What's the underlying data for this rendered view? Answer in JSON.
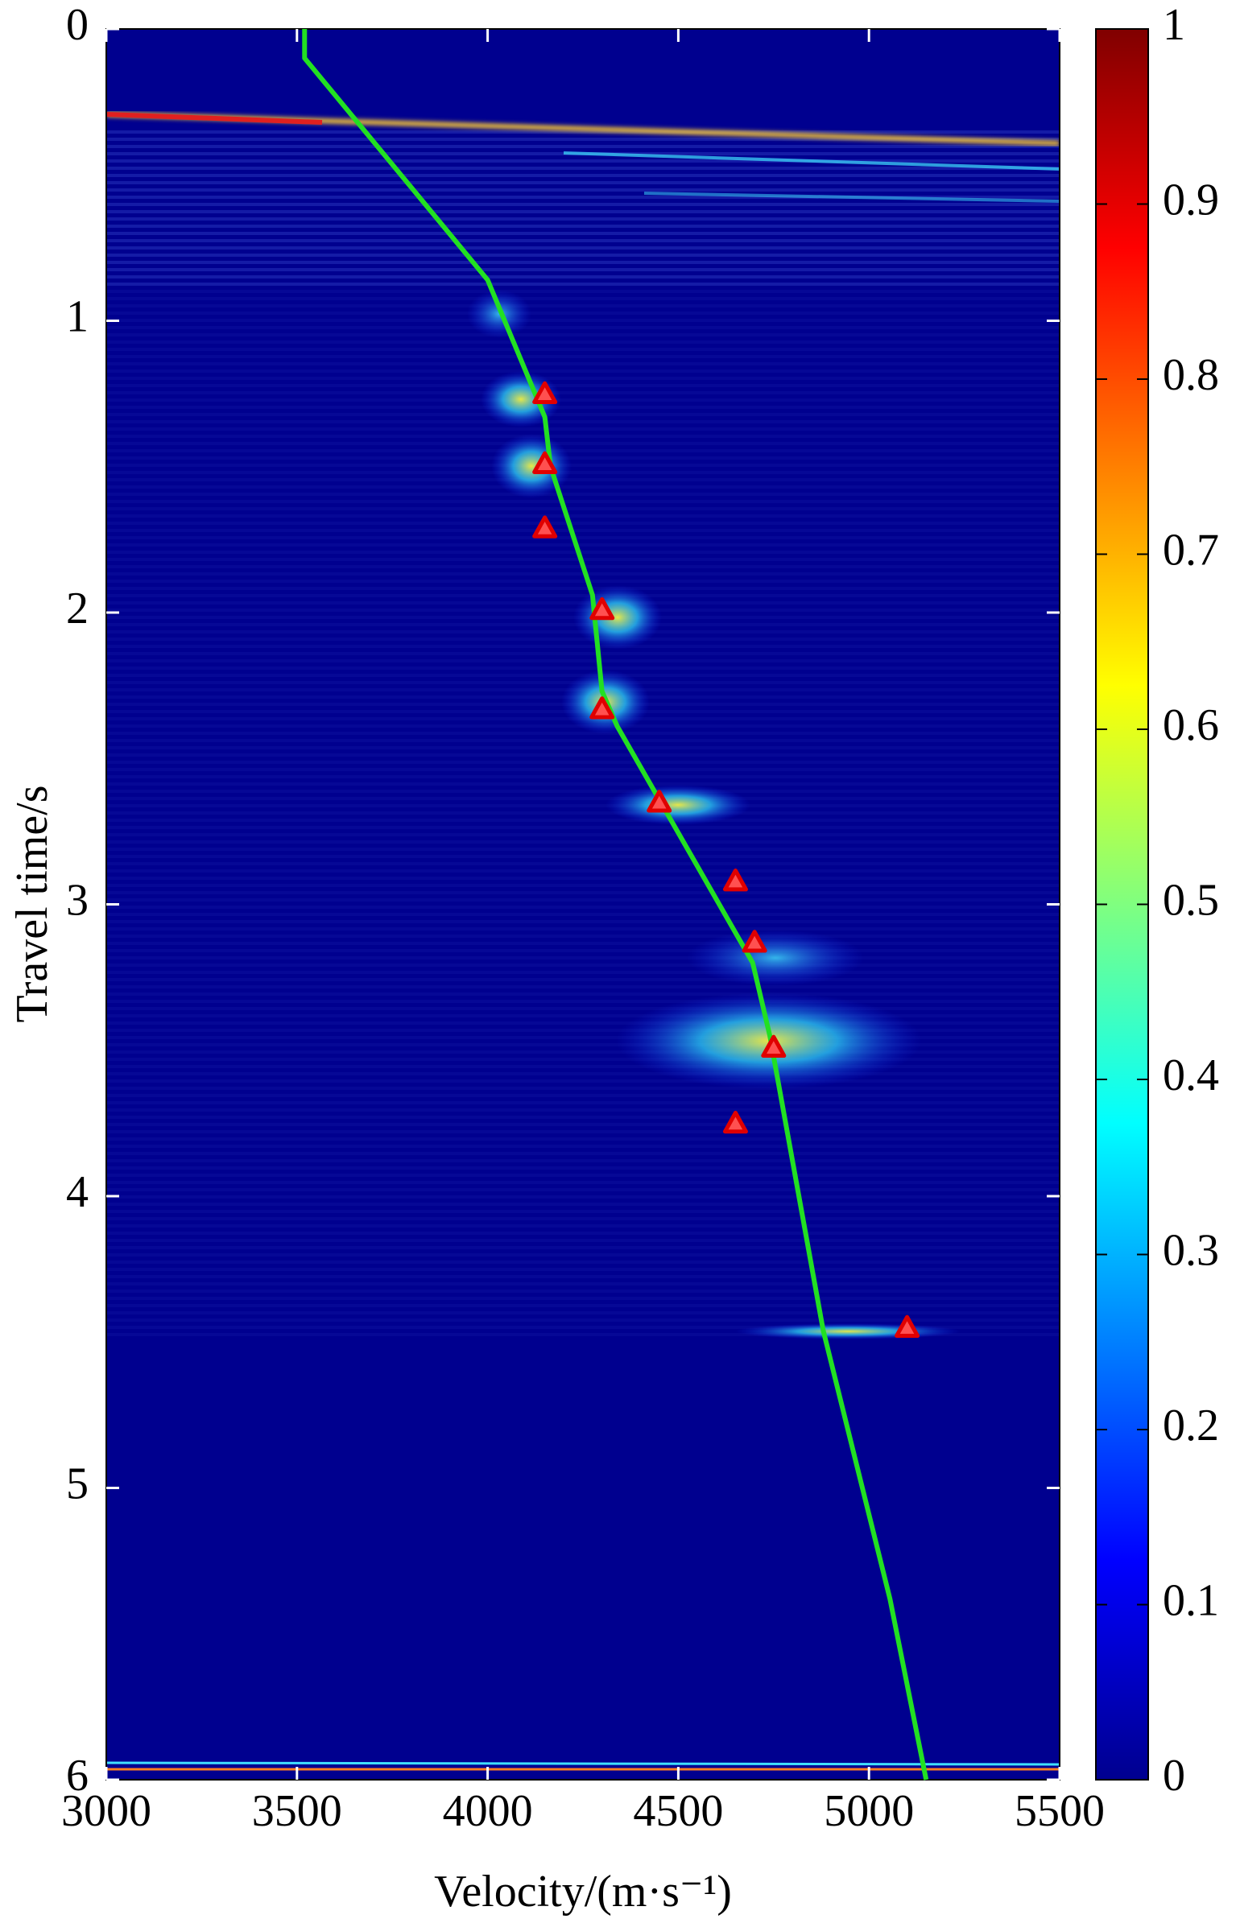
{
  "chart_data": {
    "type": "line",
    "x_label": "Velocity/(m·s⁻¹)",
    "y_label": "Travel time/s",
    "xlim": [
      3000,
      5500
    ],
    "xticks": [
      3000,
      3500,
      4000,
      4500,
      5000,
      5500
    ],
    "ylim": [
      0,
      6
    ],
    "yticks": [
      0,
      1,
      2,
      3,
      4,
      5,
      6
    ],
    "y_reversed": true,
    "background": "#00008f",
    "series": [
      {
        "type": "line",
        "color": "#22e022",
        "x": [
          3520,
          3520,
          4000,
          4150,
          4165,
          4275,
          4300,
          4340,
          4695,
          4740,
          4880,
          5055,
          5150
        ],
        "values": [
          0,
          0.1,
          0.86,
          1.33,
          1.5,
          1.94,
          2.27,
          2.39,
          3.2,
          3.45,
          4.46,
          5.38,
          6.0
        ]
      },
      {
        "type": "scatter",
        "marker": "triangle",
        "color": "#e00000",
        "x": [
          4150,
          4150,
          4150,
          4300,
          4300,
          4450,
          4650,
          4700,
          4750,
          4650,
          5100
        ],
        "values": [
          1.25,
          1.49,
          1.71,
          1.99,
          2.33,
          2.65,
          2.92,
          3.13,
          3.49,
          3.75,
          4.45
        ]
      }
    ],
    "colorbar": {
      "colormap": "jet",
      "lim": [
        0,
        1
      ],
      "ticks": [
        0,
        0.1,
        0.2,
        0.3,
        0.4,
        0.5,
        0.6,
        0.7,
        0.8,
        0.9,
        1
      ]
    }
  }
}
